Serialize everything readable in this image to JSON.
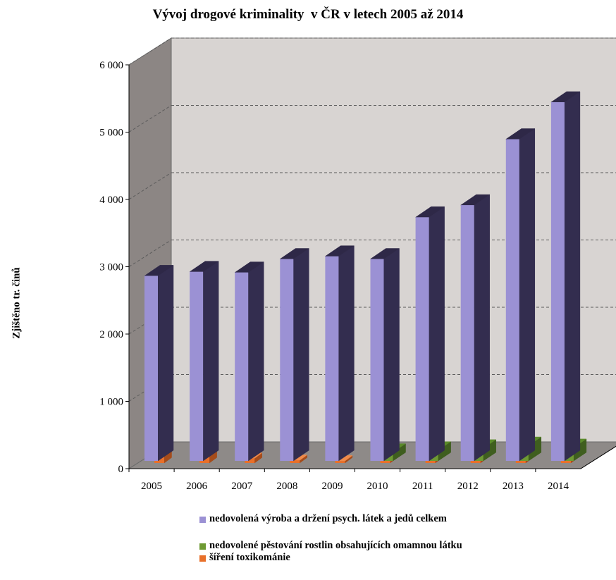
{
  "chart_data": {
    "type": "bar",
    "title": "Vývoj drogové kriminality  v ČR v letech 2005 až 2014",
    "ylabel": "Zjištěno tr. činů",
    "xlabel": "",
    "categories": [
      "2005",
      "2006",
      "2007",
      "2008",
      "2009",
      "2010",
      "2011",
      "2012",
      "2013",
      "2014"
    ],
    "ylim": [
      0,
      6000
    ],
    "yticks": [
      "0",
      "1 000",
      "2 000",
      "3 000",
      "4 000",
      "5 000",
      "6 000"
    ],
    "y_tick_values": [
      0,
      1000,
      2000,
      3000,
      4000,
      5000,
      6000
    ],
    "grid": true,
    "three_d": true,
    "legend_position": "bottom",
    "series": [
      {
        "name": "nedovolená výroba a držení psych. látek a jedů celkem",
        "values": [
          2750,
          2810,
          2800,
          3000,
          3040,
          3000,
          3620,
          3800,
          4780,
          5330
        ],
        "color": "#9b91d4",
        "side_color": "#332d4f"
      },
      {
        "name": "nedovolené pěstování rostlin obsahujících omamnou látku",
        "values": null,
        "values_visible": [
          null,
          null,
          null,
          null,
          null,
          130,
          160,
          190,
          230,
          200
        ],
        "color": "#6e9a33",
        "side_color": "#3f5e1f"
      },
      {
        "name": "šíření toxikománie",
        "values_visible": [
          150,
          110,
          70,
          40,
          30,
          30,
          40,
          40,
          80,
          30
        ],
        "color": "#e8702a",
        "side_color": "#a54c1b"
      }
    ]
  }
}
